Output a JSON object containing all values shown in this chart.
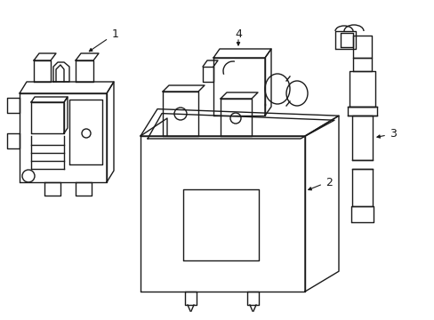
{
  "bg_color": "#ffffff",
  "line_color": "#1a1a1a",
  "line_width": 1.0,
  "fig_w": 4.89,
  "fig_h": 3.6,
  "dpi": 100
}
